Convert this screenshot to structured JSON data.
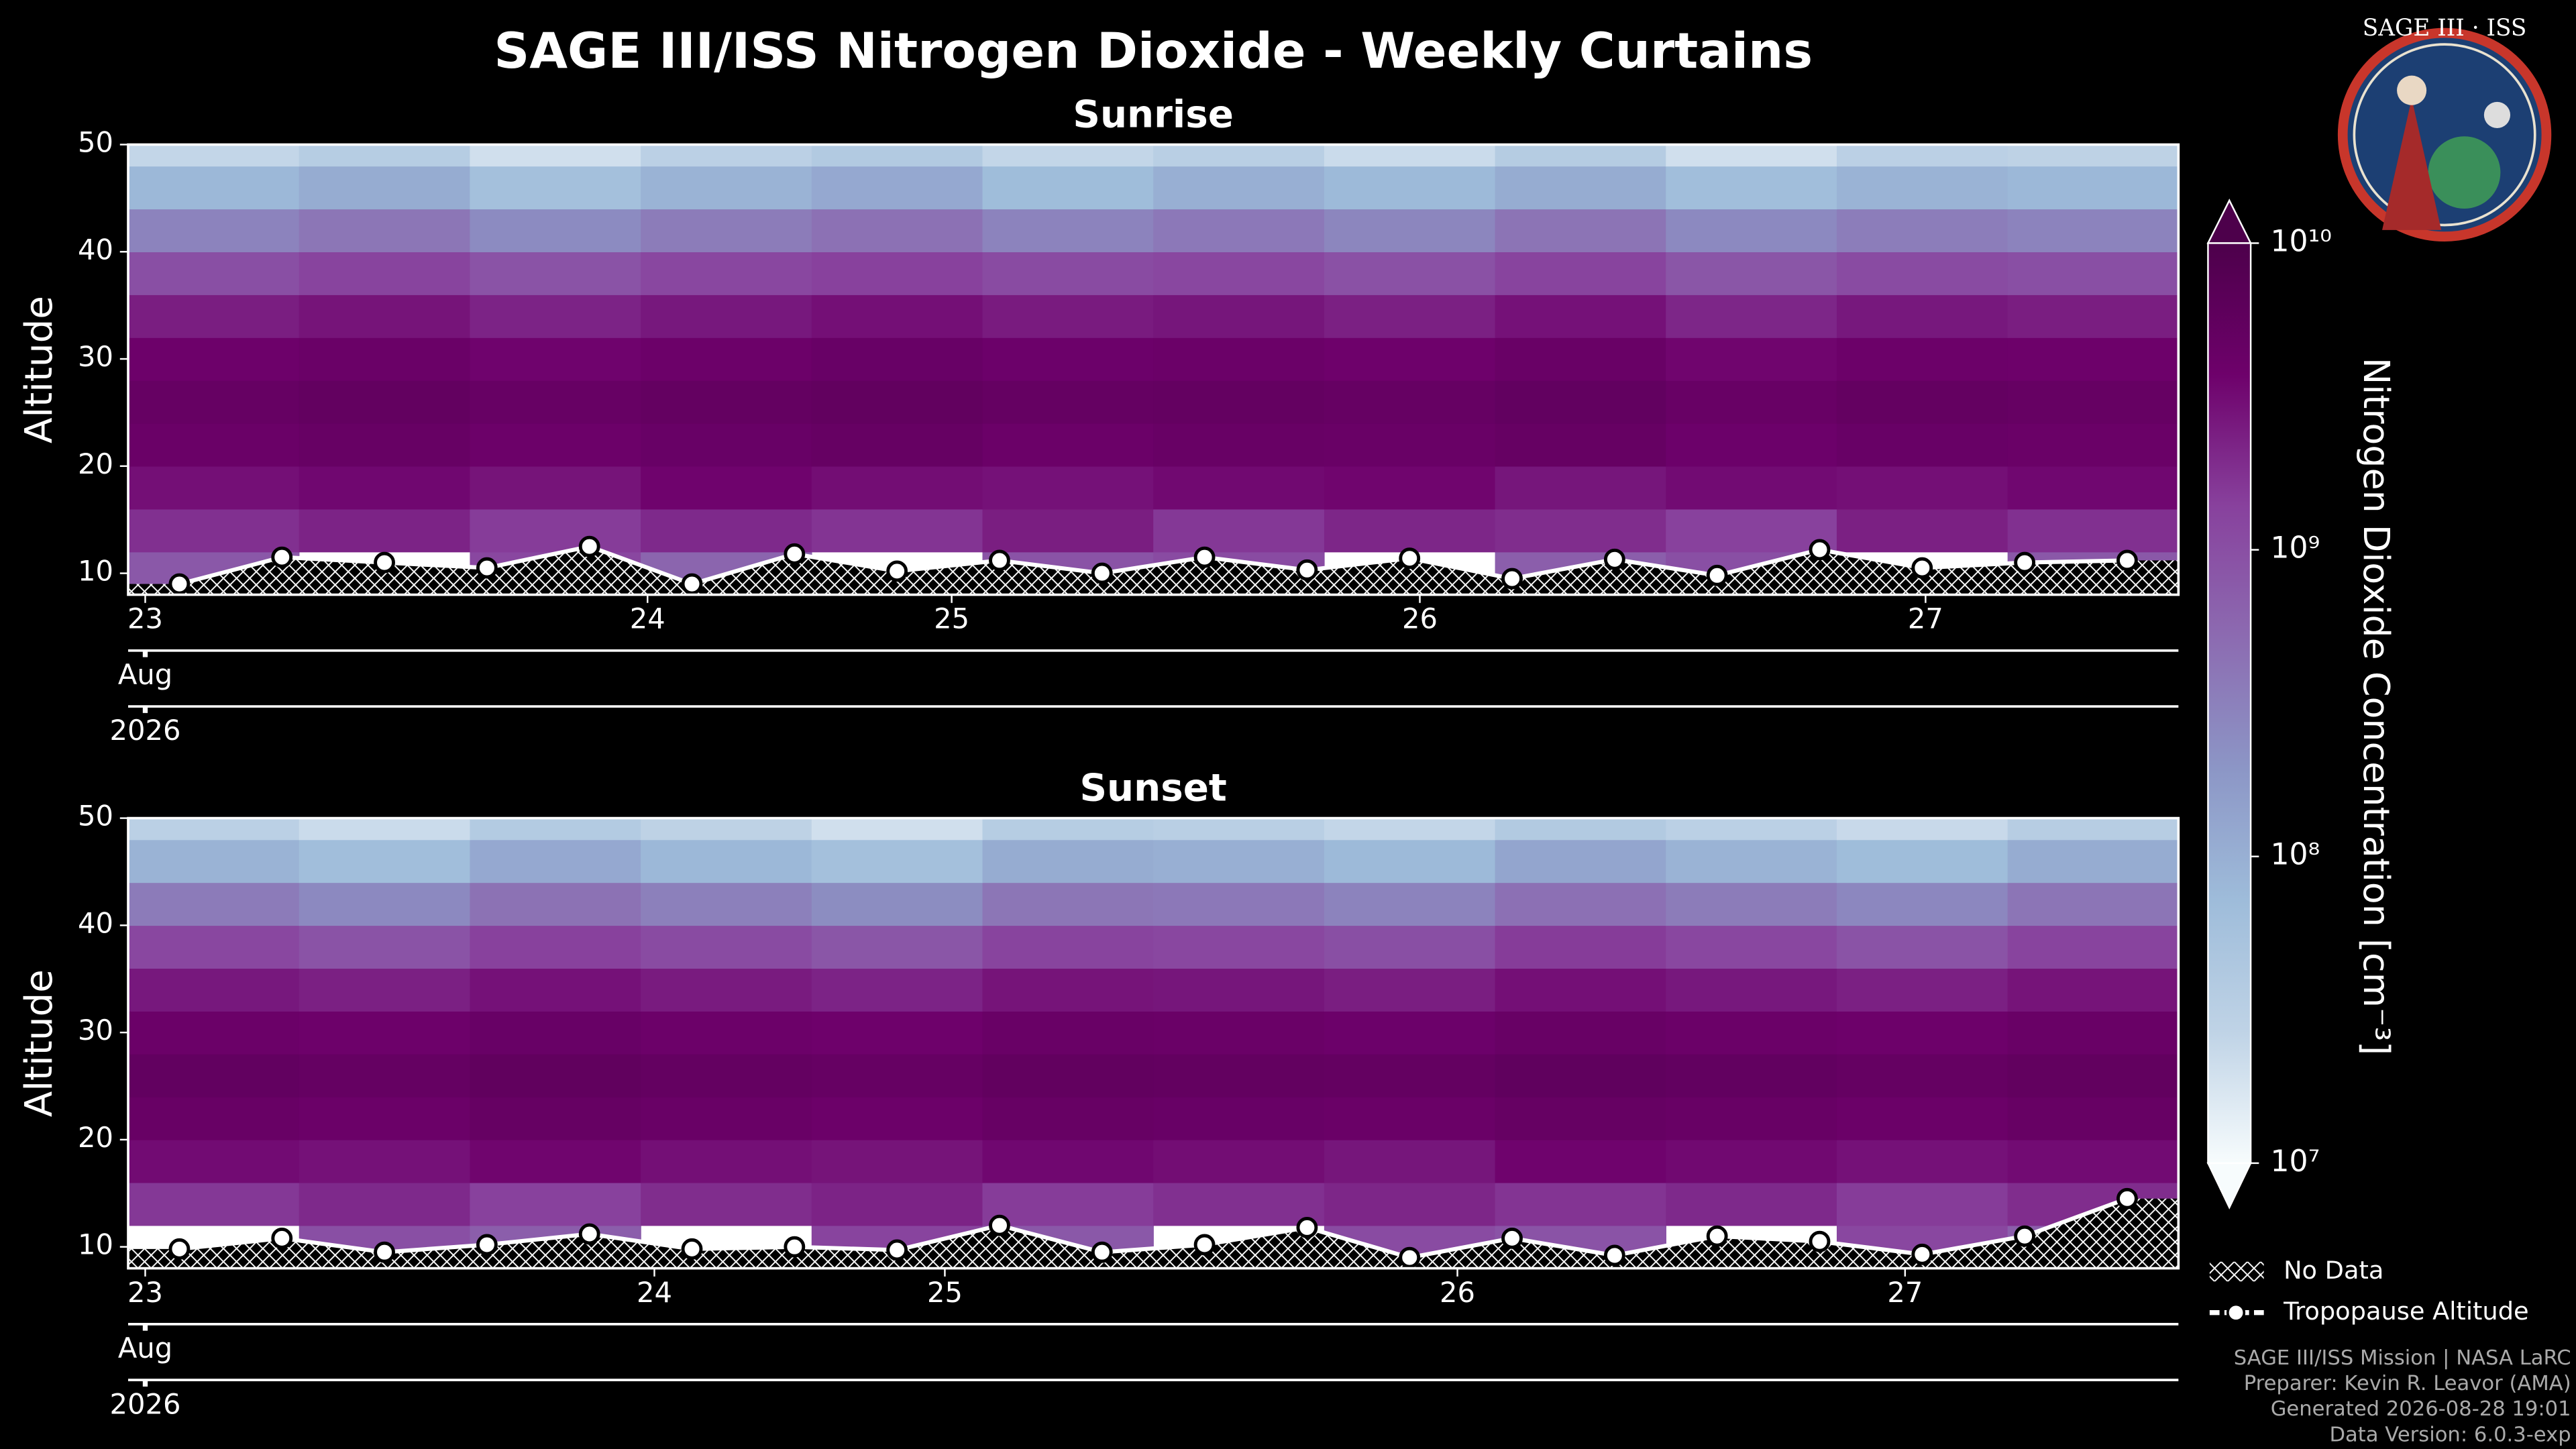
{
  "title": "SAGE III/ISS Nitrogen Dioxide - Weekly Curtains",
  "chart_data": [
    {
      "type": "heatmap",
      "title": "Sunrise",
      "y_label": "Altitude",
      "x_month": "Aug",
      "x_year": "2026",
      "xlim": [
        0,
        60
      ],
      "ylim": [
        8,
        50
      ],
      "xticks": [
        {
          "value": 0.5,
          "label": "23"
        },
        {
          "value": 15.2,
          "label": "24"
        },
        {
          "value": 24.1,
          "label": "25"
        },
        {
          "value": 37.8,
          "label": "26"
        },
        {
          "value": 52.6,
          "label": "27"
        }
      ],
      "yticks": [
        10,
        20,
        30,
        40,
        50
      ],
      "x": [
        2.5,
        7.5,
        12.5,
        17.5,
        22.5,
        27.5,
        32.5,
        37.5,
        42.5,
        47.5,
        52.5,
        57.5
      ],
      "altitudes": [
        10,
        14,
        18,
        22,
        26,
        30,
        34,
        38,
        42,
        46,
        50
      ],
      "z": [
        [
          800000000.0,
          null,
          1200000000.0,
          600000000.0,
          null,
          900000000.0,
          1100000000.0,
          null,
          700000000.0,
          1000000000.0,
          null,
          800000000.0
        ],
        [
          1800000000.0,
          2200000000.0,
          1500000000.0,
          2000000000.0,
          1700000000.0,
          2400000000.0,
          1600000000.0,
          2100000000.0,
          1900000000.0,
          1400000000.0,
          2300000000.0,
          1800000000.0
        ],
        [
          3000000000.0,
          3400000000.0,
          2800000000.0,
          3600000000.0,
          3100000000.0,
          2900000000.0,
          3300000000.0,
          3500000000.0,
          2700000000.0,
          3200000000.0,
          3000000000.0,
          3400000000.0
        ],
        [
          4200000000.0,
          4600000000.0,
          4000000000.0,
          4400000000.0,
          4800000000.0,
          4100000000.0,
          4500000000.0,
          4300000000.0,
          4700000000.0,
          3900000000.0,
          4400000000.0,
          4200000000.0
        ],
        [
          4800000000.0,
          5200000000.0,
          4600000000.0,
          5000000000.0,
          5400000000.0,
          4900000000.0,
          5100000000.0,
          4700000000.0,
          5300000000.0,
          4500000000.0,
          5000000000.0,
          4800000000.0
        ],
        [
          3800000000.0,
          4200000000.0,
          3600000000.0,
          4000000000.0,
          4400000000.0,
          3900000000.0,
          4100000000.0,
          3700000000.0,
          4300000000.0,
          3500000000.0,
          4000000000.0,
          3800000000.0
        ],
        [
          2400000000.0,
          2800000000.0,
          2200000000.0,
          2600000000.0,
          3000000000.0,
          2500000000.0,
          2700000000.0,
          2300000000.0,
          2900000000.0,
          2100000000.0,
          2600000000.0,
          2400000000.0
        ],
        [
          1000000000.0,
          1300000000.0,
          900000000.0,
          1200000000.0,
          1400000000.0,
          1100000000.0,
          1200000000.0,
          950000000.0,
          1300000000.0,
          850000000.0,
          1100000000.0,
          1000000000.0
        ],
        [
          300000000.0,
          400000000.0,
          250000000.0,
          350000000.0,
          450000000.0,
          300000000.0,
          380000000.0,
          280000000.0,
          420000000.0,
          260000000.0,
          340000000.0,
          300000000.0
        ],
        [
          80000000.0,
          110000000.0,
          60000000.0,
          90000000.0,
          120000000.0,
          70000000.0,
          100000000.0,
          75000000.0,
          110000000.0,
          65000000.0,
          90000000.0,
          80000000.0
        ],
        [
          25000000.0,
          35000000.0,
          20000000.0,
          30000000.0,
          40000000.0,
          25000000.0,
          32000000.0,
          22000000.0,
          36000000.0,
          20000000.0,
          30000000.0,
          28000000.0
        ]
      ],
      "series": [
        {
          "color": "#ffffff",
          "x": [
            1.5,
            4.5,
            7.5,
            10.5,
            13.5,
            16.5,
            19.5,
            22.5,
            25.5,
            28.5,
            31.5,
            34.5,
            37.5,
            40.5,
            43.5,
            46.5,
            49.5,
            52.5,
            55.5,
            58.5
          ],
          "values": [
            9,
            11.5,
            11,
            10.5,
            12.5,
            9,
            11.8,
            10.2,
            11.2,
            10,
            11.5,
            10.3,
            11.4,
            9.5,
            11.3,
            9.8,
            12.2,
            10.5,
            11,
            11.2
          ]
        }
      ]
    },
    {
      "type": "heatmap",
      "title": "Sunset",
      "y_label": "Altitude",
      "x_month": "Aug",
      "x_year": "2026",
      "xlim": [
        0,
        60
      ],
      "ylim": [
        8,
        50
      ],
      "xticks": [
        {
          "value": 0.5,
          "label": "23"
        },
        {
          "value": 15.4,
          "label": "24"
        },
        {
          "value": 23.9,
          "label": "25"
        },
        {
          "value": 38.9,
          "label": "26"
        },
        {
          "value": 52,
          "label": "27"
        }
      ],
      "yticks": [
        10,
        20,
        30,
        40,
        50
      ],
      "x": [
        2.5,
        7.5,
        12.5,
        17.5,
        22.5,
        27.5,
        32.5,
        37.5,
        42.5,
        47.5,
        52.5,
        57.5
      ],
      "altitudes": [
        10,
        14,
        18,
        22,
        26,
        30,
        34,
        38,
        42,
        46,
        50
      ],
      "z": [
        [
          null,
          1000000000.0,
          700000000.0,
          null,
          1300000000.0,
          800000000.0,
          null,
          1100000000.0,
          900000000.0,
          null,
          1200000000.0,
          700000000.0
        ],
        [
          1600000000.0,
          2000000000.0,
          1400000000.0,
          1900000000.0,
          2200000000.0,
          1500000000.0,
          1800000000.0,
          2100000000.0,
          1700000000.0,
          2000000000.0,
          1500000000.0,
          1900000000.0
        ],
        [
          3200000000.0,
          2900000000.0,
          3500000000.0,
          3000000000.0,
          2800000000.0,
          3400000000.0,
          3100000000.0,
          2700000000.0,
          3600000000.0,
          3300000000.0,
          2900000000.0,
          3200000000.0
        ],
        [
          4500000000.0,
          4100000000.0,
          4700000000.0,
          4300000000.0,
          4000000000.0,
          4600000000.0,
          4400000000.0,
          4200000000.0,
          4800000000.0,
          4500000000.0,
          4100000000.0,
          4600000000.0
        ],
        [
          5300000000.0,
          4900000000.0,
          5500000000.0,
          5100000000.0,
          4800000000.0,
          5400000000.0,
          5200000000.0,
          5000000000.0,
          5600000000.0,
          5300000000.0,
          4900000000.0,
          5400000000.0
        ],
        [
          4100000000.0,
          3800000000.0,
          4400000000.0,
          4000000000.0,
          3700000000.0,
          4300000000.0,
          4200000000.0,
          3900000000.0,
          4500000000.0,
          4100000000.0,
          3800000000.0,
          4300000000.0
        ],
        [
          2600000000.0,
          2300000000.0,
          2900000000.0,
          2500000000.0,
          2200000000.0,
          2800000000.0,
          2700000000.0,
          2400000000.0,
          3000000000.0,
          2600000000.0,
          2300000000.0,
          2800000000.0
        ],
        [
          1200000000.0,
          900000000.0,
          1400000000.0,
          1100000000.0,
          850000000.0,
          1300000000.0,
          1200000000.0,
          1000000000.0,
          1500000000.0,
          1200000000.0,
          900000000.0,
          1300000000.0
        ],
        [
          360000000.0,
          260000000.0,
          440000000.0,
          320000000.0,
          240000000.0,
          400000000.0,
          380000000.0,
          300000000.0,
          460000000.0,
          350000000.0,
          270000000.0,
          410000000.0
        ],
        [
          90000000.0,
          65000000.0,
          120000000.0,
          80000000.0,
          60000000.0,
          110000000.0,
          100000000.0,
          75000000.0,
          130000000.0,
          90000000.0,
          70000000.0,
          110000000.0
        ],
        [
          30000000.0,
          22000000.0,
          38000000.0,
          28000000.0,
          20000000.0,
          35000000.0,
          32000000.0,
          25000000.0,
          40000000.0,
          30000000.0,
          23000000.0,
          34000000.0
        ]
      ],
      "series": [
        {
          "color": "#ffffff",
          "x": [
            1.5,
            4.5,
            7.5,
            10.5,
            13.5,
            16.5,
            19.5,
            22.5,
            25.5,
            28.5,
            31.5,
            34.5,
            37.5,
            40.5,
            43.5,
            46.5,
            49.5,
            52.5,
            55.5,
            58.5
          ],
          "values": [
            9.8,
            10.8,
            9.5,
            10.2,
            11.2,
            9.8,
            10,
            9.7,
            12,
            9.5,
            10.2,
            11.8,
            9,
            10.8,
            9.2,
            11,
            10.5,
            9.3,
            11,
            14.5
          ]
        }
      ]
    }
  ],
  "colorbar": {
    "label": "Nitrogen Dioxide Concentration [cm⁻³]",
    "log": true,
    "lim": [
      10000000.0,
      10000000000.0
    ],
    "ticks": [
      {
        "value": 10000000.0,
        "label": "10⁷"
      },
      {
        "value": 100000000.0,
        "label": "10⁸"
      },
      {
        "value": 1000000000.0,
        "label": "10⁹"
      },
      {
        "value": 10000000000.0,
        "label": "10¹⁰"
      }
    ],
    "colors": [
      "#f7fcfd",
      "#bfd3e6",
      "#9ebcda",
      "#8c96c6",
      "#8c6bb1",
      "#88419d",
      "#6e016b",
      "#4d004b"
    ]
  },
  "legend": {
    "no_data": "No Data",
    "tropopause": "Tropopause Altitude"
  },
  "footer": [
    "SAGE III/ISS Mission | NASA LaRC",
    "Preparer: Kevin R. Leavor (AMA)",
    "Generated 2026-08-28 19:01",
    "Data Version: 6.0.3-exp"
  ],
  "logo": {
    "text": "SAGE III · ISS"
  }
}
